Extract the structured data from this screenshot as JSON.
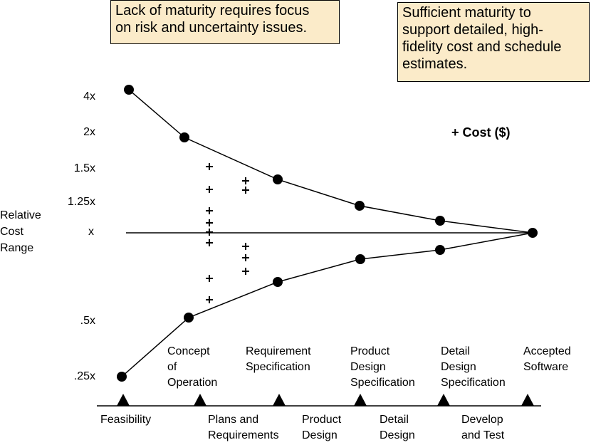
{
  "notes": {
    "left": "Lack of maturity requires focus\non risk and uncertainty issues.",
    "right": "Sufficient maturity to\nsupport detailed, high-\nfidelity cost and schedule\nestimates."
  },
  "legend": "+ Cost ($)",
  "axis": {
    "label": "Relative\nCost\nRange",
    "ticks": [
      "4x",
      "2x",
      "1.5x",
      "1.25x",
      "x",
      ".5x",
      ".25x"
    ]
  },
  "milestones": [
    "Concept\nof\nOperation",
    "Requirement\nSpecification",
    "Product\nDesign\nSpecification",
    "Detail\nDesign\nSpecification",
    "Accepted\nSoftware"
  ],
  "phases": [
    "Feasibility",
    "Plans and\nRequirements",
    "Product\nDesign",
    "Detail\nDesign",
    "Develop\nand Test"
  ]
}
